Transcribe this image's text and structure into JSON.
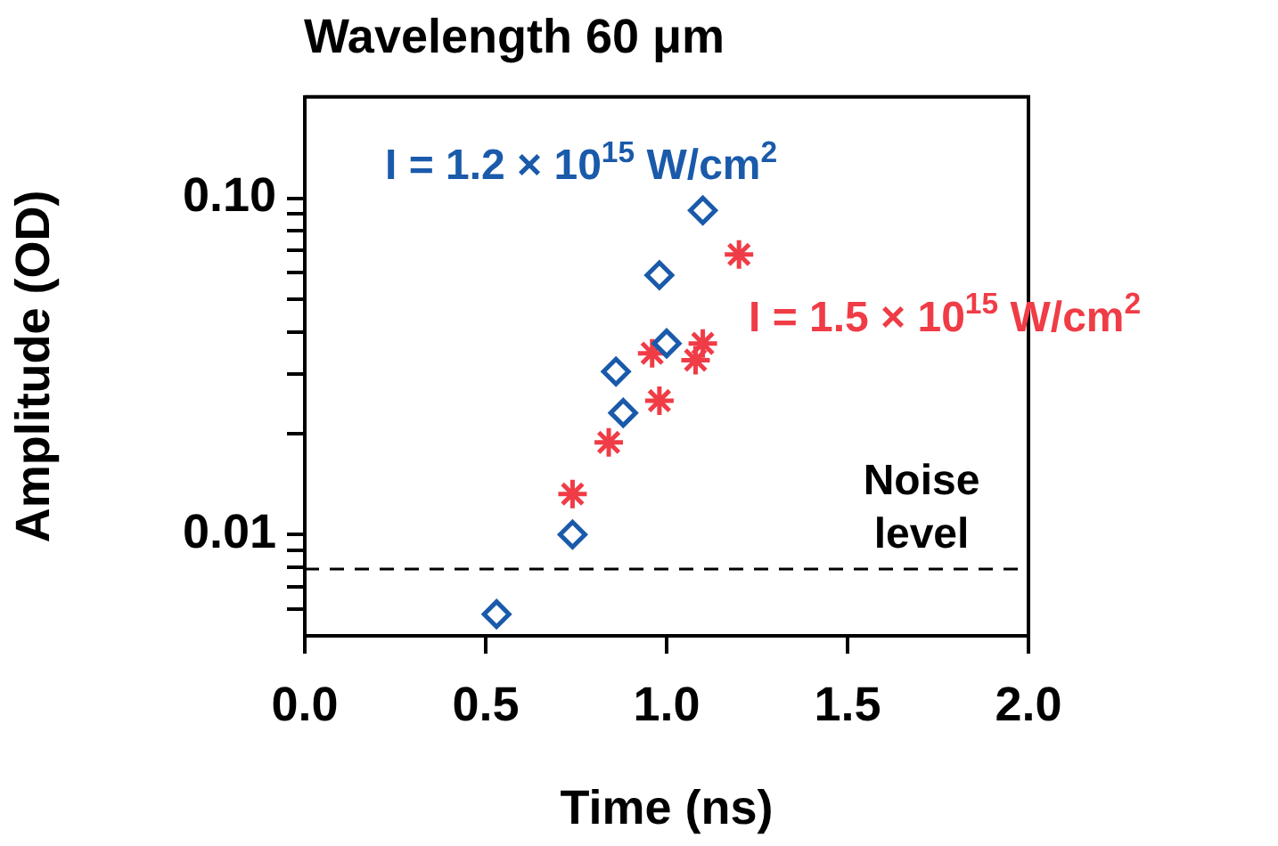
{
  "chart_data": {
    "type": "scatter",
    "title": "Wavelength 60 μm",
    "xlabel": "Time (ns)",
    "ylabel": "Amplitude (OD)",
    "log": "y",
    "grid": false,
    "legend": "right",
    "xlim": [
      0,
      2
    ],
    "xticks": [
      {
        "value": 0,
        "label": "0.0"
      },
      {
        "value": 0.5,
        "label": "0.5"
      },
      {
        "value": 1,
        "label": "1.0"
      },
      {
        "value": 1.5,
        "label": "1.5"
      },
      {
        "value": 2,
        "label": "2.0"
      }
    ],
    "ylim": [
      0.005,
      0.2
    ],
    "yticks": [
      {
        "value": 0.006,
        "label": null
      },
      {
        "value": 0.007,
        "label": null
      },
      {
        "value": 0.008,
        "label": null
      },
      {
        "value": 0.009,
        "label": null
      },
      {
        "value": 0.01,
        "label": "0.01"
      },
      {
        "value": 0.02,
        "label": null
      },
      {
        "value": 0.03,
        "label": null
      },
      {
        "value": 0.04,
        "label": null
      },
      {
        "value": 0.05,
        "label": null
      },
      {
        "value": 0.06,
        "label": null
      },
      {
        "value": 0.07,
        "label": null
      },
      {
        "value": 0.08,
        "label": null
      },
      {
        "value": 0.09,
        "label": null
      },
      {
        "value": 0.1,
        "label": "0.10"
      }
    ],
    "series": [
      {
        "name": "I = 1.2 × 10$^{15}$ W/cm$^{2}$",
        "color": "#1a5aaa",
        "marker": "diamond",
        "x": [
          0.53,
          0.74,
          0.86,
          0.88,
          0.98,
          1.0,
          1.1
        ],
        "values": [
          0.0058,
          0.01,
          0.0305,
          0.023,
          0.059,
          0.037,
          0.092
        ]
      },
      {
        "name": "I = 1.5 × 10$^{15}$ W/cm$^{2}$",
        "color": "#f03c46",
        "marker": "cross",
        "x": [
          0.74,
          0.84,
          0.96,
          0.98,
          1.08,
          1.1,
          1.2
        ],
        "values": [
          0.0132,
          0.0188,
          0.0346,
          0.025,
          0.033,
          0.037,
          0.068
        ]
      }
    ],
    "ref_lines": [
      {
        "axis": "y",
        "value": 0.0079,
        "label": "Noise level",
        "line_style": "dashed",
        "color": "#000000"
      }
    ]
  }
}
